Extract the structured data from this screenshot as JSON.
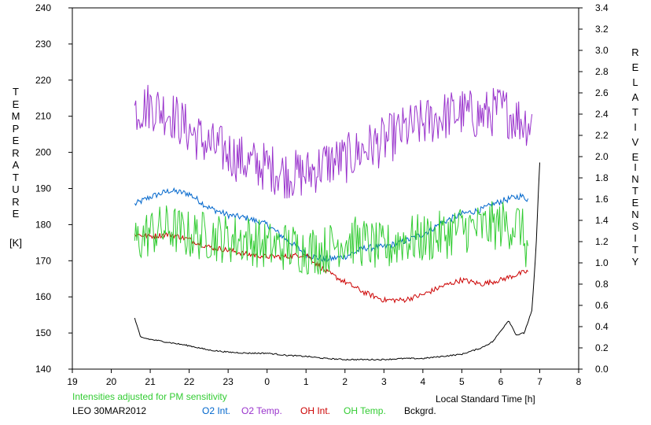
{
  "chart_data": {
    "type": "line",
    "x_label": "Local Standard Time [h]",
    "x_ticks": [
      "19",
      "20",
      "21",
      "22",
      "23",
      "0",
      "1",
      "2",
      "3",
      "4",
      "5",
      "6",
      "7",
      "8"
    ],
    "y_left": {
      "label_letters": [
        "T",
        "E",
        "M",
        "P",
        "E",
        "R",
        "A",
        "T",
        "U",
        "R",
        "E"
      ],
      "unit": "[K]",
      "range": [
        140,
        240
      ],
      "ticks": [
        "140",
        "150",
        "160",
        "170",
        "180",
        "190",
        "200",
        "210",
        "220",
        "230",
        "240"
      ]
    },
    "y_right": {
      "label_word1": [
        "R",
        "E",
        "L",
        "A",
        "T",
        "I",
        "V",
        "E"
      ],
      "label_word2": [
        "I",
        "N",
        "T",
        "E",
        "N",
        "S",
        "I",
        "T",
        "Y"
      ],
      "range": [
        0.0,
        3.4
      ],
      "ticks": [
        "0.0",
        "0.2",
        "0.4",
        "0.6",
        "0.8",
        "1.0",
        "1.2",
        "1.4",
        "1.6",
        "1.8",
        "2.0",
        "2.2",
        "2.4",
        "2.6",
        "2.8",
        "3.0",
        "3.2",
        "3.4"
      ]
    },
    "note": "Intensities adjusted for PM sensitivity",
    "station_date": "LEO 30MAR2012",
    "series": [
      {
        "name": "O2 Int.",
        "axis": "right",
        "color": "#0066cc",
        "noise": 0.03,
        "x": [
          20.6,
          21.0,
          21.5,
          22.0,
          22.5,
          23.0,
          23.5,
          24.0,
          24.5,
          25.0,
          25.5,
          26.0,
          26.5,
          27.0,
          27.5,
          28.0,
          28.5,
          29.0,
          29.5,
          30.0,
          30.5,
          30.7
        ],
        "y": [
          1.55,
          1.62,
          1.68,
          1.65,
          1.52,
          1.45,
          1.42,
          1.36,
          1.22,
          1.08,
          1.03,
          1.06,
          1.14,
          1.15,
          1.2,
          1.27,
          1.38,
          1.46,
          1.5,
          1.58,
          1.63,
          1.6
        ]
      },
      {
        "name": "O2 Temp.",
        "axis": "left",
        "color": "#9933cc",
        "noise": 7,
        "x": [
          20.6,
          21.0,
          21.5,
          22.0,
          22.5,
          23.0,
          23.5,
          24.0,
          24.5,
          25.0,
          25.5,
          26.0,
          26.5,
          27.0,
          27.5,
          28.0,
          28.5,
          29.0,
          29.5,
          30.0,
          30.5,
          30.8
        ],
        "y": [
          212,
          213,
          211,
          206,
          202,
          200,
          197,
          196,
          194,
          194,
          197,
          198,
          201,
          203,
          206,
          208,
          210,
          211,
          210,
          212,
          209,
          208
        ]
      },
      {
        "name": "OH Int.",
        "axis": "right",
        "color": "#cc0000",
        "noise": 0.025,
        "x": [
          20.6,
          21.0,
          21.5,
          22.0,
          22.5,
          23.0,
          23.5,
          24.0,
          24.5,
          25.0,
          25.5,
          26.0,
          26.5,
          27.0,
          27.5,
          28.0,
          28.5,
          29.0,
          29.5,
          30.0,
          30.5,
          30.7
        ],
        "y": [
          1.27,
          1.25,
          1.27,
          1.22,
          1.15,
          1.12,
          1.08,
          1.06,
          1.06,
          1.08,
          0.92,
          0.82,
          0.72,
          0.65,
          0.65,
          0.7,
          0.78,
          0.84,
          0.8,
          0.84,
          0.9,
          0.92
        ]
      },
      {
        "name": "OH Temp.",
        "axis": "left",
        "color": "#33cc33",
        "noise": 7,
        "x": [
          20.6,
          21.0,
          21.5,
          22.0,
          22.5,
          23.0,
          23.5,
          24.0,
          24.5,
          25.0,
          25.5,
          26.0,
          26.5,
          27.0,
          27.5,
          28.0,
          28.5,
          29.0,
          29.5,
          30.0,
          30.5,
          30.7
        ],
        "y": [
          175,
          178,
          179,
          177,
          177,
          176,
          176,
          174,
          174,
          173,
          173,
          176,
          175,
          173,
          176,
          176,
          177,
          179,
          179,
          180,
          180,
          172
        ]
      },
      {
        "name": "Bckgrd.",
        "axis": "right",
        "color": "#000000",
        "noise": 0.006,
        "x": [
          20.6,
          20.75,
          21.0,
          21.5,
          22.0,
          22.5,
          23.0,
          23.5,
          24.0,
          24.5,
          25.0,
          25.5,
          26.0,
          26.5,
          27.0,
          27.5,
          28.0,
          28.5,
          29.0,
          29.5,
          29.8,
          30.0,
          30.2,
          30.4,
          30.6,
          30.8,
          30.9,
          31.0
        ],
        "y": [
          0.48,
          0.3,
          0.28,
          0.25,
          0.22,
          0.18,
          0.16,
          0.15,
          0.15,
          0.13,
          0.12,
          0.1,
          0.09,
          0.09,
          0.09,
          0.1,
          0.1,
          0.12,
          0.14,
          0.2,
          0.26,
          0.36,
          0.46,
          0.32,
          0.34,
          0.55,
          1.1,
          1.95
        ]
      }
    ]
  }
}
